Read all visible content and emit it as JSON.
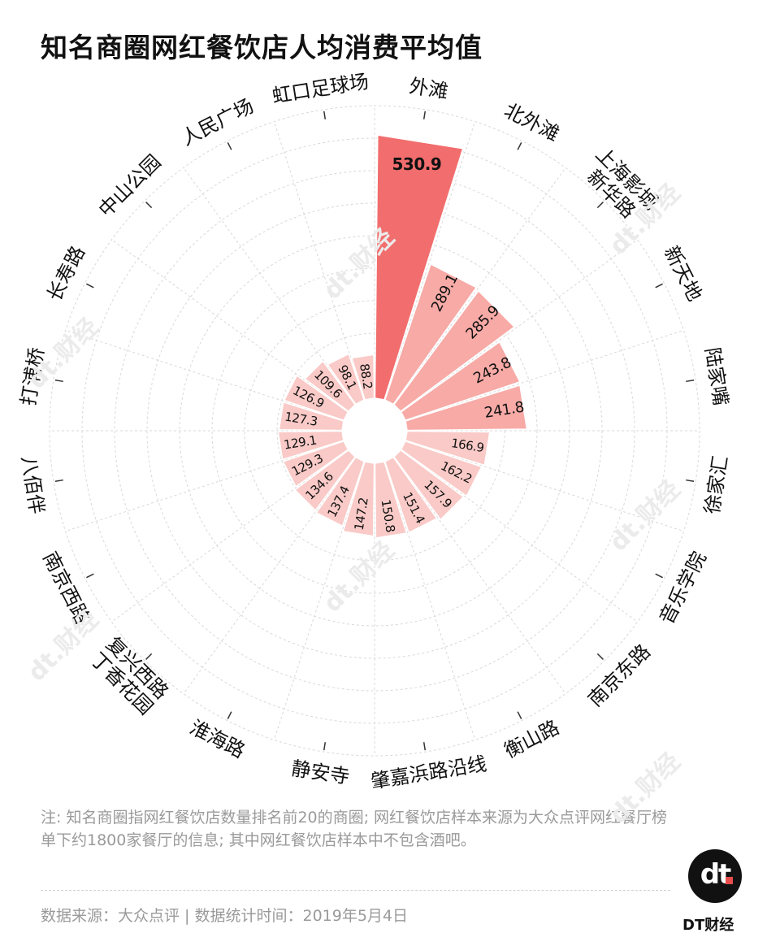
{
  "title": "知名商圈网红餐饮店人均消费平均值",
  "note": "注: 知名商圈指网红餐饮店数量排名前20的商圈; 网红餐饮店样本来源为大众点评网红餐厅榜单下约1800家餐厅的信息; 其中网红餐饮店样本中不包含酒吧。",
  "source": "数据来源：大众点评 | 数据统计时间：2019年5月4日",
  "brand": {
    "logo_text": "dt",
    "name": "DT财经",
    "watermark": "dt.财经"
  },
  "colors": {
    "max_bar": "#f26d6d",
    "high_bar": "#f7aaa6",
    "low_bar": "#f9cac7",
    "grid": "#d8d8d8",
    "label": "#111111"
  },
  "chart_data": {
    "type": "bar",
    "coordinate_system": "polar",
    "title": "知名商圈网红餐饮店人均消费平均值",
    "categories": [
      "外滩",
      "北外滩",
      "上海影城\n新华路",
      "新天地",
      "陆家嘴",
      "徐家汇",
      "音乐学院",
      "南京东路",
      "衡山路",
      "肇嘉浜路沿线",
      "静安寺",
      "淮海路",
      "复兴西路\n丁香花园",
      "南京西路",
      "八佰伴",
      "打浦桥",
      "长寿路",
      "中山公园",
      "人民广场",
      "虹口足球场"
    ],
    "values": [
      530.9,
      289.1,
      285.9,
      243.8,
      241.8,
      166.9,
      162.2,
      157.9,
      151.4,
      150.8,
      147.2,
      137.4,
      134.6,
      129.3,
      129.1,
      127.3,
      126.9,
      109.6,
      98.1,
      88.2
    ],
    "value_labels": [
      "530.9",
      "289.1",
      "285.9",
      "243.8",
      "241.8",
      "166.9",
      "162.2",
      "157.9",
      "151.4",
      "150.8",
      "147.2",
      "137.4",
      "134.6",
      "129.3",
      "129.1",
      "127.3",
      "126.9",
      "109.6",
      "98.1",
      "88.2"
    ],
    "grid": true,
    "legend": "none"
  }
}
